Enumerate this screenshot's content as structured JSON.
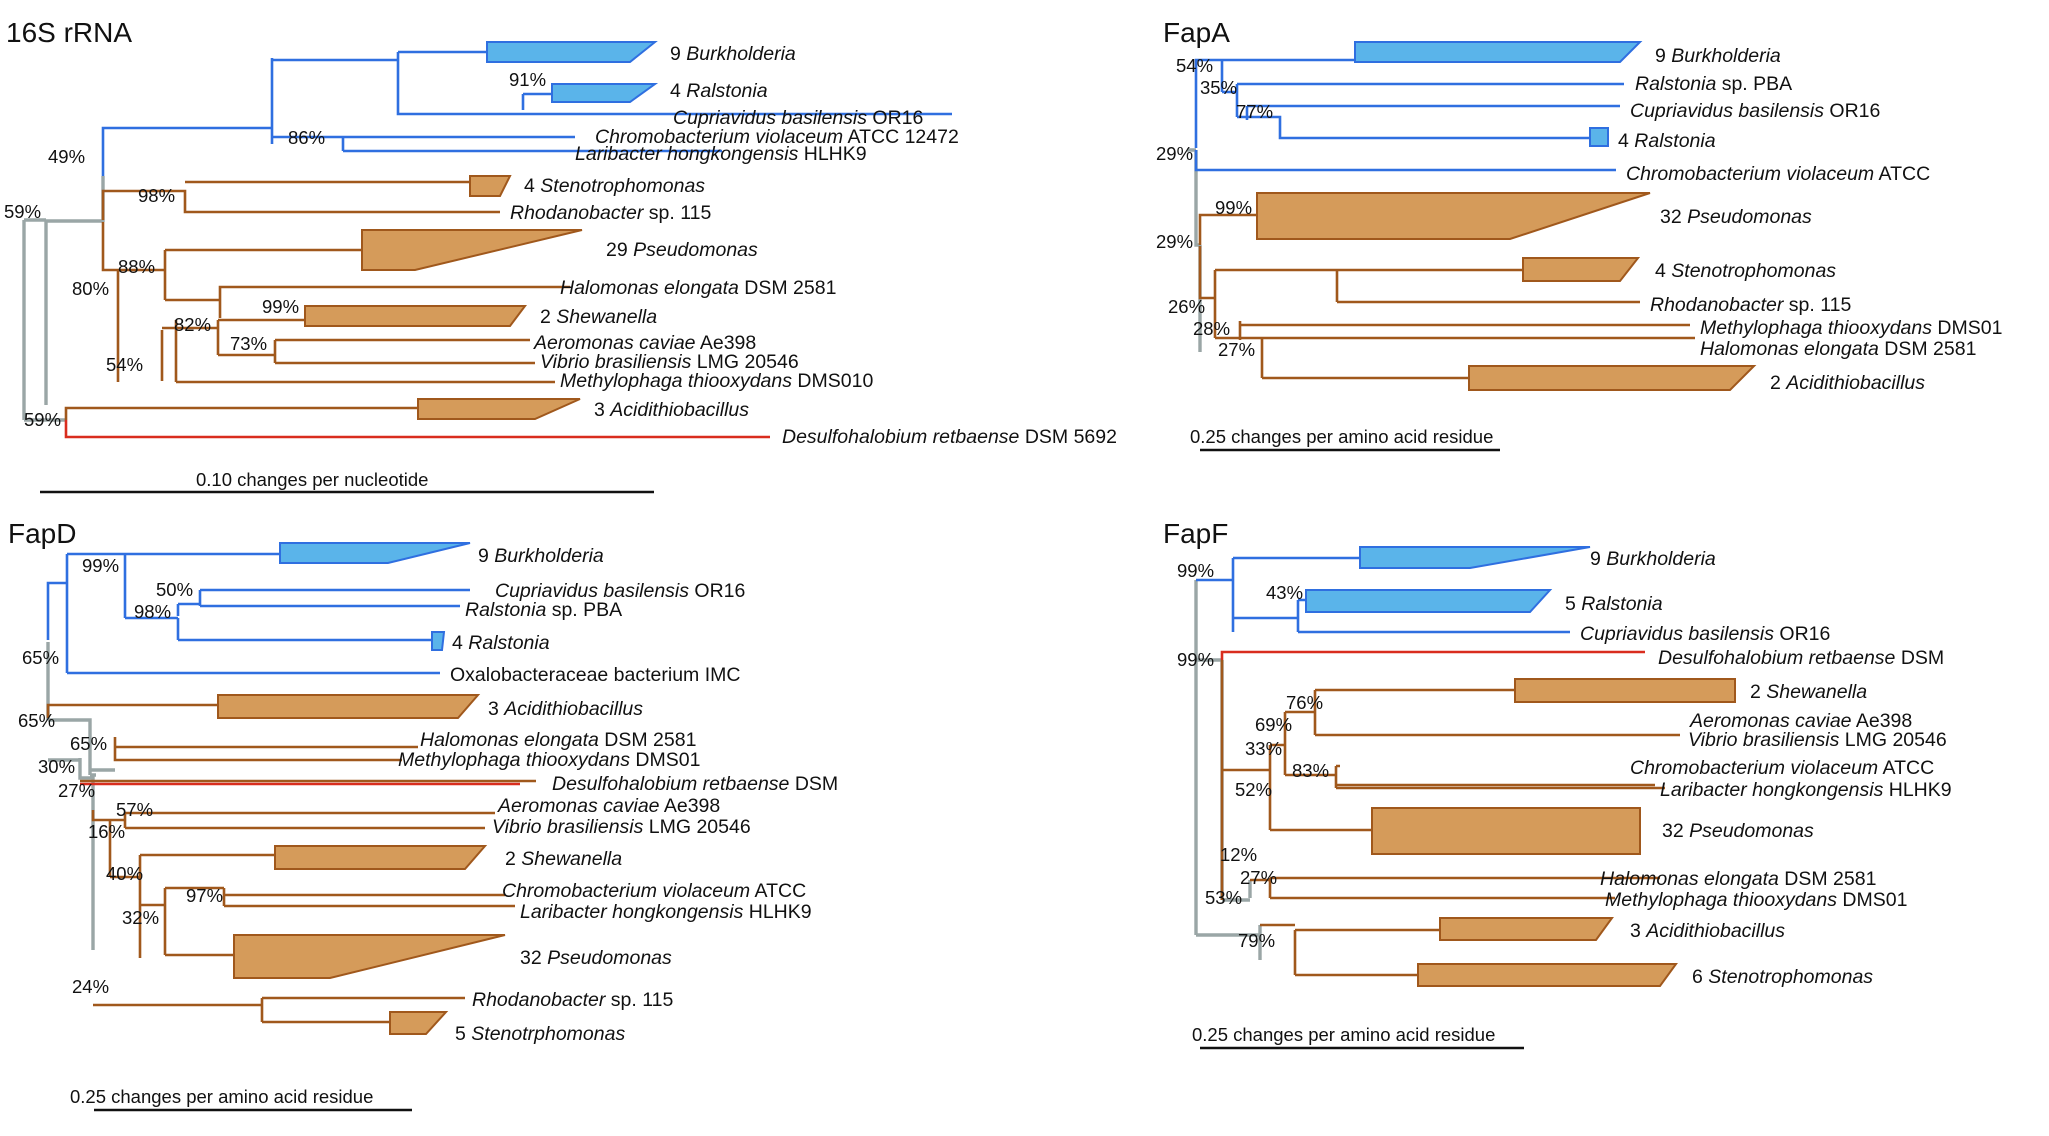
{
  "colors": {
    "beta": "#2f6fe0",
    "gamma": "#a0581c",
    "delta": "#d92d1e",
    "root": "#9aa6a6",
    "beta_fill": "#5ab4ea",
    "gamma_fill": "#d59b5a",
    "beta_stroke": "#2f6fe0",
    "gamma_stroke": "#a0581c"
  },
  "panels": {
    "rrna": {
      "title": "16S rRNA",
      "scale": "0.10 changes per nucleotide",
      "taxa": [
        {
          "a": "9 ",
          "i": "Burkholderia",
          "b": ""
        },
        {
          "a": "4 ",
          "i": "Ralstonia",
          "b": ""
        },
        {
          "a": "",
          "i": "Cupriavidus basilensis",
          "b": " OR16"
        },
        {
          "a": "",
          "i": "Chromobacterium violaceum",
          "b": " ATCC 12472"
        },
        {
          "a": "",
          "i": "Laribacter hongkongensis",
          "b": " HLHK9"
        },
        {
          "a": "4 ",
          "i": "Stenotrophomonas",
          "b": ""
        },
        {
          "a": "",
          "i": "Rhodanobacter",
          "b": " sp. 115"
        },
        {
          "a": "29 ",
          "i": "Pseudomonas",
          "b": ""
        },
        {
          "a": "",
          "i": "Halomonas elongata",
          "b": " DSM 2581"
        },
        {
          "a": "2 ",
          "i": "Shewanella",
          "b": ""
        },
        {
          "a": "",
          "i": "Aeromonas caviae",
          "b": " Ae398"
        },
        {
          "a": "",
          "i": "Vibrio brasiliensis",
          "b": " LMG 20546"
        },
        {
          "a": "",
          "i": "Methylophaga thiooxydans",
          "b": " DMS010"
        },
        {
          "a": "3 ",
          "i": "Acidithiobacillus",
          "b": ""
        },
        {
          "a": "",
          "i": "Desulfohalobium retbaense",
          "b": " DSM 5692"
        }
      ],
      "support": [
        "91%",
        "86%",
        "49%",
        "98%",
        "59%",
        "88%",
        "80%",
        "99%",
        "82%",
        "73%",
        "54%",
        "59%"
      ]
    },
    "fapa": {
      "title": "FapA",
      "scale": "0.25 changes per amino acid residue",
      "taxa": [
        {
          "a": "9 ",
          "i": "Burkholderia",
          "b": ""
        },
        {
          "a": "",
          "i": "Ralstonia",
          "b": " sp. PBA"
        },
        {
          "a": "",
          "i": "Cupriavidus basilensis",
          "b": " OR16"
        },
        {
          "a": "4 ",
          "i": "Ralstonia",
          "b": ""
        },
        {
          "a": "",
          "i": "Chromobacterium violaceum",
          "b": " ATCC"
        },
        {
          "a": "32 ",
          "i": "Pseudomonas",
          "b": ""
        },
        {
          "a": "4 ",
          "i": "Stenotrophomonas",
          "b": ""
        },
        {
          "a": "",
          "i": "Rhodanobacter",
          "b": " sp. 115"
        },
        {
          "a": "",
          "i": "Methylophaga thiooxydans",
          "b": " DMS01"
        },
        {
          "a": "",
          "i": "Halomonas elongata",
          "b": " DSM 2581"
        },
        {
          "a": "2 ",
          "i": "Acidithiobacillus",
          "b": ""
        }
      ],
      "support": [
        "54%",
        "35%",
        "77%",
        "29%",
        "99%",
        "29%",
        "26%",
        "28%",
        "27%"
      ]
    },
    "fapd": {
      "title": "FapD",
      "scale": "0.25 changes per amino acid residue",
      "taxa": [
        {
          "a": "9 ",
          "i": "Burkholderia",
          "b": ""
        },
        {
          "a": "",
          "i": "Cupriavidus basilensis",
          "b": " OR16"
        },
        {
          "a": "",
          "i": "Ralstonia",
          "b": " sp. PBA"
        },
        {
          "a": "4 ",
          "i": "Ralstonia",
          "b": ""
        },
        {
          "a": "Oxalobacteraceae bacterium IMC",
          "i": "",
          "b": ""
        },
        {
          "a": "3 ",
          "i": "Acidithiobacillus",
          "b": ""
        },
        {
          "a": "",
          "i": "Halomonas elongata",
          "b": " DSM 2581"
        },
        {
          "a": "",
          "i": "Methylophaga thiooxydans",
          "b": " DMS01"
        },
        {
          "a": "",
          "i": "Desulfohalobium retbaense",
          "b": " DSM"
        },
        {
          "a": "",
          "i": "Aeromonas caviae",
          "b": " Ae398"
        },
        {
          "a": "",
          "i": "Vibrio brasiliensis",
          "b": " LMG 20546"
        },
        {
          "a": "2 ",
          "i": "Shewanella",
          "b": ""
        },
        {
          "a": "",
          "i": "Chromobacterium violaceum",
          "b": " ATCC"
        },
        {
          "a": "",
          "i": "Laribacter hongkongensis",
          "b": " HLHK9"
        },
        {
          "a": "32 ",
          "i": "Pseudomonas",
          "b": ""
        },
        {
          "a": "",
          "i": "Rhodanobacter",
          "b": " sp. 115"
        },
        {
          "a": "5 ",
          "i": "Stenotrphomonas",
          "b": ""
        }
      ],
      "support": [
        "99%",
        "50%",
        "98%",
        "65%",
        "65%",
        "65%",
        "30%",
        "27%",
        "57%",
        "16%",
        "40%",
        "97%",
        "32%",
        "24%"
      ]
    },
    "fapf": {
      "title": "FapF",
      "scale": "0.25 changes per amino acid residue",
      "taxa": [
        {
          "a": "9 ",
          "i": "Burkholderia",
          "b": ""
        },
        {
          "a": "5 ",
          "i": "Ralstonia",
          "b": ""
        },
        {
          "a": "",
          "i": "Cupriavidus basilensis",
          "b": " OR16"
        },
        {
          "a": "",
          "i": "Desulfohalobium retbaense",
          "b": " DSM"
        },
        {
          "a": "2 ",
          "i": "Shewanella",
          "b": ""
        },
        {
          "a": "",
          "i": "Aeromonas caviae",
          "b": " Ae398"
        },
        {
          "a": "",
          "i": "Vibrio brasiliensis",
          "b": " LMG 20546"
        },
        {
          "a": "",
          "i": "Chromobacterium violaceum",
          "b": " ATCC"
        },
        {
          "a": "",
          "i": "Laribacter hongkongensis",
          "b": " HLHK9"
        },
        {
          "a": "32 ",
          "i": "Pseudomonas",
          "b": ""
        },
        {
          "a": "",
          "i": "Halomonas elongata",
          "b": " DSM 2581"
        },
        {
          "a": "",
          "i": "Methylophaga thiooxydans",
          "b": " DMS01"
        },
        {
          "a": "3 ",
          "i": "Acidithiobacillus",
          "b": ""
        },
        {
          "a": "6 ",
          "i": "Stenotrophomonas",
          "b": ""
        }
      ],
      "support": [
        "99%",
        "43%",
        "99%",
        "76%",
        "69%",
        "33%",
        "83%",
        "52%",
        "12%",
        "27%",
        "53%",
        "79%"
      ]
    }
  }
}
